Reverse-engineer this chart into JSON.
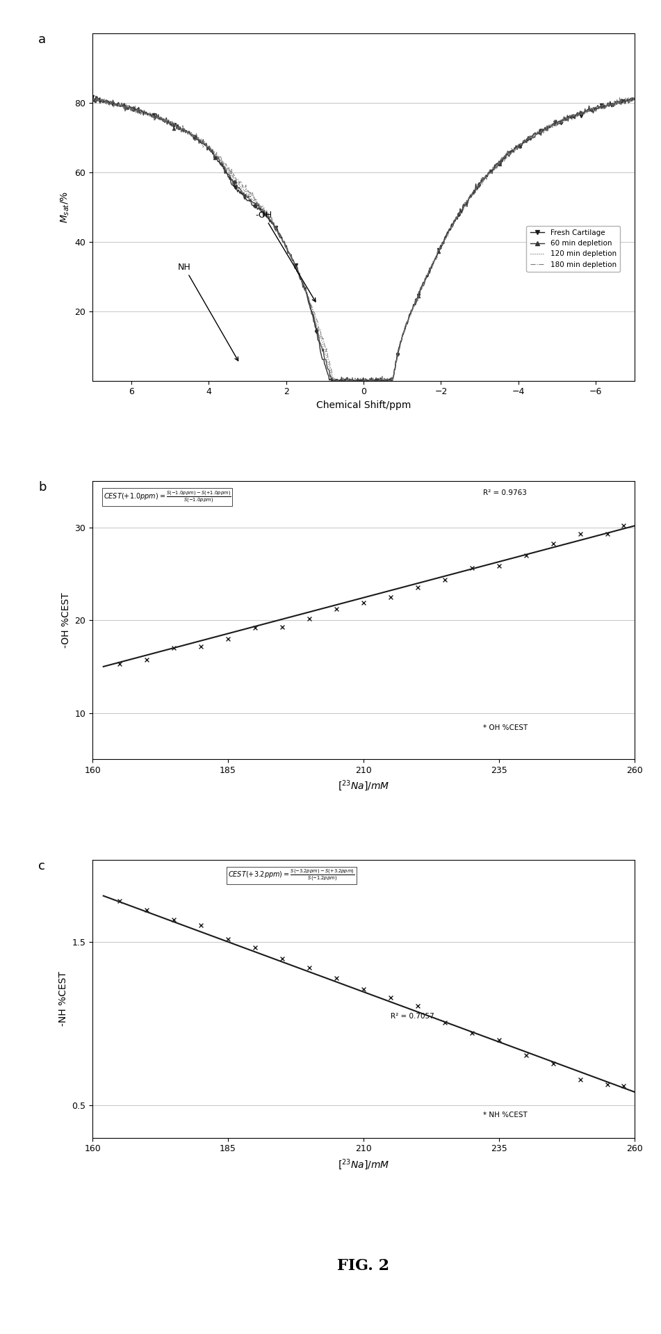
{
  "fig_label": "FIG. 2",
  "panel_a": {
    "xlabel": "Chemical Shift/ppm",
    "ylabel": "Msat/%",
    "xlim": [
      7,
      -7
    ],
    "ylim": [
      0,
      100
    ],
    "yticks": [
      20,
      40,
      60,
      80
    ],
    "xticks": [
      6,
      4,
      2,
      0,
      -2,
      -4,
      -6
    ],
    "label_a": "a",
    "legend_entries": [
      "Fresh Cartilage",
      "60 min depletion",
      "120 min depletion",
      "180 min depletion"
    ]
  },
  "panel_b": {
    "xlabel": "[$^{23}$Na]/mM",
    "ylabel": "-OH %CEST",
    "xlim": [
      160,
      260
    ],
    "ylim": [
      5,
      35
    ],
    "yticks": [
      10,
      20,
      30
    ],
    "xticks": [
      160,
      185,
      210,
      235,
      260
    ],
    "label_b": "b",
    "r_squared": "R² = 0.9763",
    "legend_entry": "OH %CEST",
    "x_data": [
      165,
      170,
      175,
      180,
      185,
      190,
      195,
      200,
      205,
      210,
      215,
      220,
      225,
      230,
      235,
      240,
      245,
      250,
      255,
      258
    ],
    "y_data_b": [
      15.2,
      15.8,
      16.4,
      17.2,
      18.0,
      18.8,
      19.5,
      20.3,
      21.2,
      22.0,
      22.8,
      23.6,
      24.5,
      25.5,
      26.3,
      27.2,
      28.0,
      28.9,
      29.7,
      30.1
    ],
    "fit_x": [
      162,
      260
    ],
    "fit_y": [
      15.0,
      30.2
    ]
  },
  "panel_c": {
    "xlabel": "[$^{23}$Na]/mM",
    "ylabel": "-NH %CEST",
    "xlim": [
      160,
      260
    ],
    "ylim": [
      0.3,
      2.0
    ],
    "yticks": [
      0.5,
      1.5
    ],
    "xticks": [
      160,
      185,
      210,
      235,
      260
    ],
    "label_c": "c",
    "r_squared": "R² = 0.7057",
    "legend_entry": "NH %CEST",
    "x_data": [
      165,
      170,
      175,
      180,
      185,
      190,
      195,
      200,
      205,
      210,
      215,
      220,
      225,
      230,
      235,
      240,
      245,
      250,
      255,
      258
    ],
    "y_data_c": [
      1.75,
      1.7,
      1.65,
      1.6,
      1.52,
      1.47,
      1.42,
      1.35,
      1.28,
      1.22,
      1.15,
      1.08,
      1.0,
      0.93,
      0.87,
      0.8,
      0.73,
      0.67,
      0.63,
      0.6
    ],
    "fit_x": [
      162,
      260
    ],
    "fit_y": [
      1.78,
      0.58
    ]
  }
}
